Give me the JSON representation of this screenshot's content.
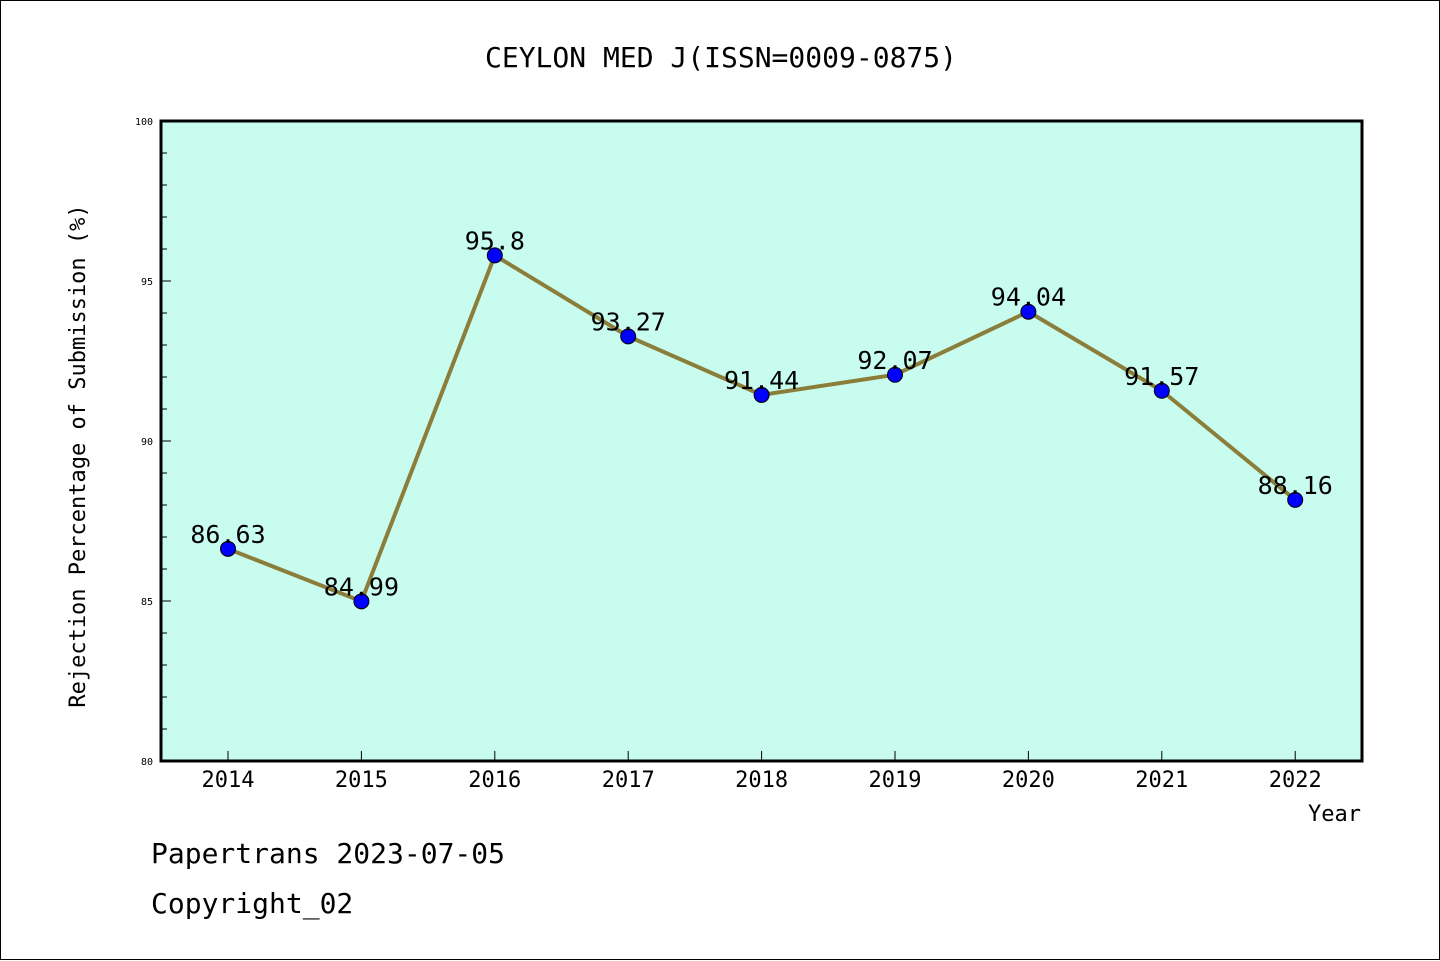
{
  "chart_data": {
    "type": "line",
    "title": "CEYLON MED J(ISSN=0009-0875)",
    "xlabel": "Year",
    "ylabel": "Rejection Percentage of Submission (%)",
    "categories": [
      "2014",
      "2015",
      "2016",
      "2017",
      "2018",
      "2019",
      "2020",
      "2021",
      "2022"
    ],
    "values": [
      86.63,
      84.99,
      95.8,
      93.27,
      91.44,
      92.07,
      94.04,
      91.57,
      88.16
    ],
    "data_labels": [
      "86.63",
      "84.99",
      "95.8",
      "93.27",
      "91.44",
      "92.07",
      "94.04",
      "91.57",
      "88.16"
    ],
    "ylim": [
      80,
      100
    ],
    "y_ticks": [
      80,
      85,
      90,
      95,
      100
    ],
    "grid": false,
    "colors": {
      "plot_background": "#c8fcee",
      "line": "#8b7d3a",
      "marker": "#0000ff"
    }
  },
  "footer": {
    "line1": "Papertrans 2023-07-05",
    "line2": "Copyright_02"
  }
}
